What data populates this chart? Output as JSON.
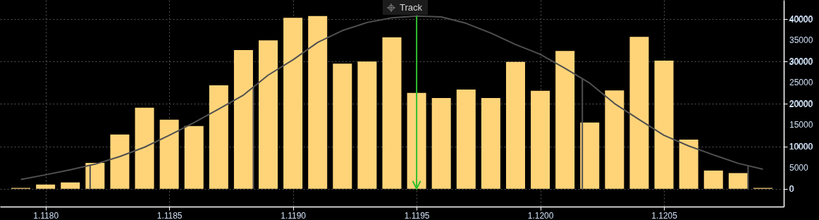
{
  "chart_data": {
    "type": "bar",
    "annotations": [
      "Track"
    ],
    "x": [
      1.1179,
      1.118,
      1.1181,
      1.1182,
      1.1183,
      1.1184,
      1.1185,
      1.1186,
      1.1187,
      1.1188,
      1.1189,
      1.119,
      1.1191,
      1.1192,
      1.1193,
      1.1194,
      1.1195,
      1.1196,
      1.1197,
      1.1198,
      1.1199,
      1.12,
      1.1201,
      1.1202,
      1.1203,
      1.1204,
      1.1205,
      1.1206,
      1.1207,
      1.1208,
      1.1209
    ],
    "series": [
      {
        "color": "#ffd479",
        "values": [
          200,
          1000,
          1500,
          6100,
          12800,
          19100,
          16300,
          14800,
          24400,
          32700,
          35000,
          40300,
          40700,
          29500,
          30000,
          35700,
          22600,
          21400,
          23400,
          21400,
          29900,
          23100,
          32500,
          15600,
          23200,
          35800,
          30200,
          11600,
          4300,
          3700,
          200
        ]
      },
      {
        "type": "line",
        "color": "#505050",
        "values": [
          2200,
          3300,
          4500,
          5800,
          7600,
          9800,
          12600,
          15600,
          18800,
          22100,
          26800,
          30400,
          34500,
          37300,
          39200,
          40300,
          40700,
          40500,
          39000,
          36700,
          34000,
          31700,
          28400,
          24900,
          20100,
          16300,
          12600,
          10100,
          8000,
          6000,
          4600
        ]
      }
    ],
    "ref_lines": [
      {
        "axis": "x",
        "value": 1.11818
      },
      {
        "axis": "x",
        "value": 1.11884
      },
      {
        "axis": "x",
        "value": 1.12017
      },
      {
        "axis": "x",
        "value": 1.12084
      },
      {
        "axis": "x",
        "value": 1.1195,
        "color": "#2fbf2f"
      }
    ],
    "xlim": [
      1.11783,
      1.12097
    ],
    "xticks": [
      {
        "value": 1.118,
        "label": "1.1180"
      },
      1.1185,
      {
        "value": 1.119,
        "label": "1.1190"
      },
      1.1195,
      {
        "value": 1.12,
        "label": "1.1200"
      },
      1.1205
    ],
    "ylim": [
      -4200,
      44500
    ],
    "yticks": [
      0,
      5000,
      10000,
      15000,
      20000,
      25000,
      30000,
      35000,
      40000
    ],
    "grid": true
  }
}
